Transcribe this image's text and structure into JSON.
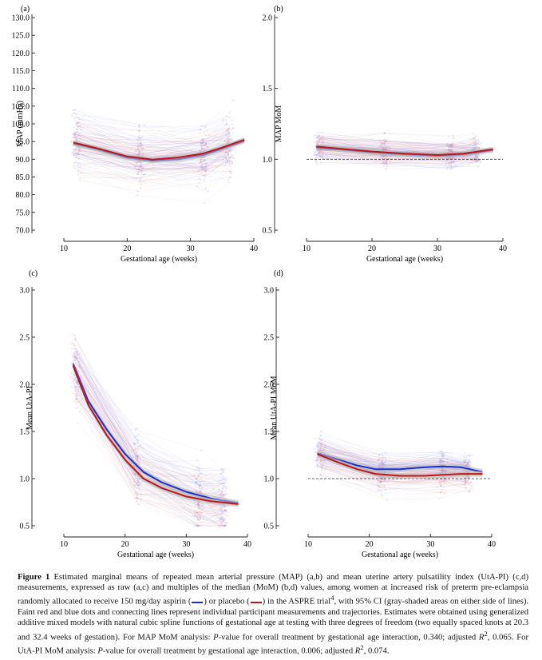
{
  "colors": {
    "aspirin": "#1a2fd0",
    "placebo": "#c0141c",
    "ci": "#b7b7b7",
    "axis": "#222222"
  },
  "chart_data": [
    {
      "panel_label": "(a)",
      "type": "line",
      "ylabel": "MAP (mmHg)",
      "xlabel": "Gestational age (weeks)",
      "xlim": [
        10,
        40
      ],
      "ylim": [
        70,
        130
      ],
      "x_ticks": [
        10,
        20,
        30,
        40
      ],
      "x_tick_labels": [
        "10",
        "20",
        "30",
        "40"
      ],
      "y_ticks": [
        70,
        75,
        80,
        85,
        90,
        95,
        100,
        105,
        110,
        115,
        120,
        125,
        130
      ],
      "y_tick_labels": [
        "70.0",
        "75.0",
        "80.0",
        "85.0",
        "90.0",
        "95.0",
        "100.0",
        "105.0",
        "110.0",
        "115.0",
        "120.0",
        "125.0",
        "130.0"
      ],
      "reference_line": null,
      "visit_weeks": [
        12,
        22,
        32,
        36
      ],
      "spread": 10,
      "series": [
        {
          "treatment": "aspirin",
          "x": [
            11.5,
            15,
            20,
            24,
            28,
            32,
            35,
            38.5
          ],
          "y": [
            94.5,
            93,
            90.5,
            89.6,
            90.0,
            91.2,
            93,
            95.2
          ]
        },
        {
          "treatment": "placebo",
          "x": [
            11.5,
            15,
            20,
            24,
            28,
            32,
            35,
            38.5
          ],
          "y": [
            94.7,
            93.2,
            90.8,
            89.9,
            90.5,
            91.6,
            93.3,
            95.5
          ]
        }
      ]
    },
    {
      "panel_label": "(b)",
      "type": "line",
      "ylabel": "MAP MoM",
      "xlabel": "Gestational age (weeks)",
      "xlim": [
        10,
        40
      ],
      "ylim": [
        0.5,
        2.0
      ],
      "x_ticks": [
        10,
        20,
        30,
        40
      ],
      "x_tick_labels": [
        "10",
        "20",
        "30",
        "40"
      ],
      "y_ticks": [
        0.5,
        1.0,
        1.5,
        2.0
      ],
      "y_tick_labels": [
        "0.5",
        "1.0",
        "1.5",
        "2.0"
      ],
      "reference_line": 1.0,
      "visit_weeks": [
        12,
        22,
        32,
        36
      ],
      "spread": 0.12,
      "series": [
        {
          "treatment": "aspirin",
          "x": [
            11.5,
            15,
            20,
            25,
            30,
            34,
            38.5
          ],
          "y": [
            1.08,
            1.07,
            1.05,
            1.035,
            1.025,
            1.035,
            1.065
          ]
        },
        {
          "treatment": "placebo",
          "x": [
            11.5,
            15,
            20,
            25,
            30,
            34,
            38.5
          ],
          "y": [
            1.09,
            1.075,
            1.055,
            1.04,
            1.03,
            1.04,
            1.07
          ]
        }
      ]
    },
    {
      "panel_label": "(c)",
      "type": "line",
      "ylabel": "Mean UtA-PI",
      "xlabel": "Gestational age (weeks)",
      "xlim": [
        10,
        40
      ],
      "ylim": [
        0.5,
        3.0
      ],
      "x_ticks": [
        10,
        20,
        30,
        40
      ],
      "x_tick_labels": [
        "10",
        "20",
        "30",
        "40"
      ],
      "y_ticks": [
        0.5,
        1.0,
        1.5,
        2.0,
        2.5,
        3.0
      ],
      "y_tick_labels": [
        "0.5",
        "1.0",
        "1.5",
        "2.0",
        "2.5",
        "3.0"
      ],
      "reference_line": null,
      "visit_weeks": [
        12,
        22,
        32,
        36
      ],
      "spread": 0.45,
      "series": [
        {
          "treatment": "aspirin",
          "x": [
            11.5,
            14,
            17,
            20,
            23,
            26,
            30,
            34,
            38.5
          ],
          "y": [
            2.22,
            1.82,
            1.52,
            1.26,
            1.07,
            0.96,
            0.86,
            0.79,
            0.74
          ]
        },
        {
          "treatment": "placebo",
          "x": [
            11.5,
            14,
            17,
            20,
            23,
            26,
            30,
            34,
            38.5
          ],
          "y": [
            2.2,
            1.78,
            1.46,
            1.2,
            1.0,
            0.9,
            0.81,
            0.76,
            0.73
          ]
        }
      ]
    },
    {
      "panel_label": "(d)",
      "type": "line",
      "ylabel": "Mean UtA-PI MoM",
      "xlabel": "Gestational age (weeks)",
      "xlim": [
        10,
        40
      ],
      "ylim": [
        0.5,
        3.0
      ],
      "x_ticks": [
        10,
        20,
        30,
        40
      ],
      "x_tick_labels": [
        "10",
        "20",
        "30",
        "40"
      ],
      "y_ticks": [
        0.5,
        1.0,
        1.5,
        2.0,
        2.5,
        3.0
      ],
      "y_tick_labels": [
        "0.5",
        "1.0",
        "1.5",
        "2.0",
        "2.5",
        "3.0"
      ],
      "reference_line": 1.0,
      "visit_weeks": [
        12,
        22,
        32,
        36
      ],
      "spread": 0.25,
      "series": [
        {
          "treatment": "aspirin",
          "x": [
            11.5,
            15,
            18,
            21,
            25,
            29,
            32,
            35,
            38.5
          ],
          "y": [
            1.27,
            1.2,
            1.14,
            1.1,
            1.1,
            1.12,
            1.13,
            1.12,
            1.07
          ]
        },
        {
          "treatment": "placebo",
          "x": [
            11.5,
            15,
            18,
            21,
            25,
            29,
            32,
            35,
            38.5
          ],
          "y": [
            1.26,
            1.17,
            1.1,
            1.05,
            1.03,
            1.03,
            1.04,
            1.05,
            1.05
          ]
        }
      ]
    }
  ],
  "caption": {
    "figure_label": "Figure 1",
    "part1": " Estimated marginal means of repeated mean arterial pressure (MAP) (a,b) and mean uterine artery pulsatility index (UtA-PI) (c,d) measurements, expressed as raw (a,c) and multiples of the median (MoM) (b,d) values, among women at increased risk of preterm pre-eclampsia randomly allocated to receive 150 mg/day aspirin (",
    "part2": ") or placebo (",
    "part3": ") in the ASPRE trial",
    "ref": "4",
    "part4": ", with 95% CI (gray-shaded areas on either side of lines). Faint red and blue dots and connecting lines represent individual participant measurements and trajectories. Estimates were obtained using generalized additive mixed models with natural cubic spline functions of gestational age at testing with three degrees of freedom (two equally spaced knots at 20.3 and 32.4 weeks of gestation). For MAP MoM analysis: ",
    "p_label_1": "P",
    "part5": "-value for overall treatment by gestational age interaction, 0.340; adjusted ",
    "r_label_1": "R",
    "sup_1": "2",
    "part6": ", 0.065. For UtA-PI MoM analysis: ",
    "p_label_2": "P",
    "part7": "-value for overall treatment by gestational age interaction, 0.006; adjusted ",
    "r_label_2": "R",
    "sup_2": "2",
    "part8": ", 0.074."
  }
}
